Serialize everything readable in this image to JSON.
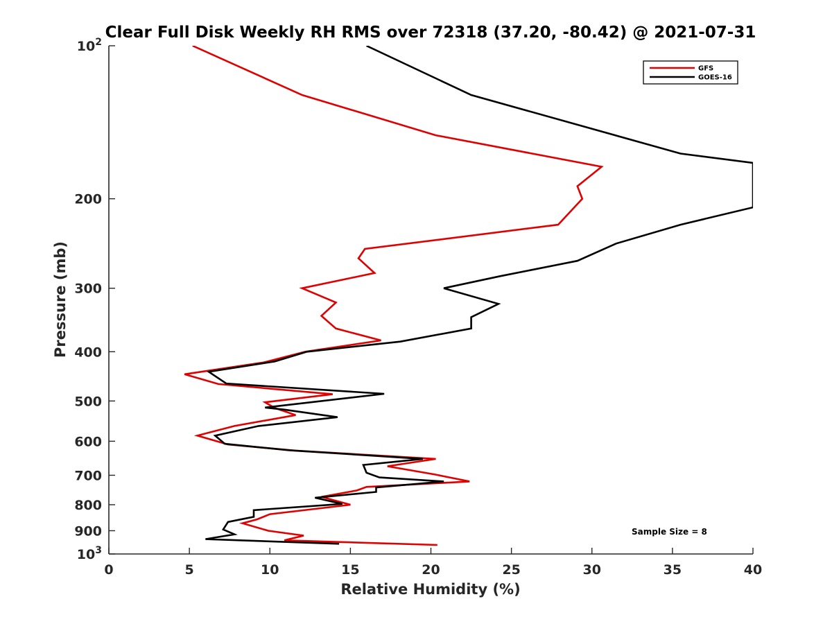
{
  "chart_data": {
    "type": "line",
    "title": "Clear Full Disk Weekly RH RMS over 72318 (37.20, -80.42) @ 2021-07-31",
    "xlabel": "Relative Humidity (%)",
    "ylabel": "Pressure (mb)",
    "xlim": [
      0,
      40
    ],
    "ylim": [
      100,
      1000
    ],
    "yscale": "log",
    "yreversed": true,
    "grid": false,
    "legend_position": "top-right",
    "xticks": [
      0,
      5,
      10,
      15,
      20,
      25,
      30,
      35,
      40
    ],
    "yticks": [
      {
        "value": 100,
        "label": "10",
        "sup": "2"
      },
      {
        "value": 200,
        "label": "200",
        "sup": ""
      },
      {
        "value": 300,
        "label": "300",
        "sup": ""
      },
      {
        "value": 400,
        "label": "400",
        "sup": ""
      },
      {
        "value": 500,
        "label": "500",
        "sup": ""
      },
      {
        "value": 600,
        "label": "600",
        "sup": ""
      },
      {
        "value": 700,
        "label": "700",
        "sup": ""
      },
      {
        "value": 800,
        "label": "800",
        "sup": ""
      },
      {
        "value": 900,
        "label": "900",
        "sup": ""
      },
      {
        "value": 1000,
        "label": "10",
        "sup": "3"
      }
    ],
    "annotation": "Sample Size = 8",
    "series": [
      {
        "name": "GFS",
        "color": "#e00000",
        "points": [
          [
            5.2,
            100
          ],
          [
            12.0,
            125
          ],
          [
            20.3,
            150
          ],
          [
            30.6,
            173
          ],
          [
            29.1,
            189
          ],
          [
            29.4,
            200
          ],
          [
            27.9,
            225
          ],
          [
            15.9,
            251
          ],
          [
            15.5,
            262
          ],
          [
            16.5,
            280
          ],
          [
            12.0,
            300
          ],
          [
            14.1,
            320
          ],
          [
            13.2,
            340
          ],
          [
            14.1,
            360
          ],
          [
            16.9,
            380
          ],
          [
            12.2,
            400
          ],
          [
            9.6,
            420
          ],
          [
            4.7,
            443
          ],
          [
            6.8,
            463
          ],
          [
            13.9,
            485
          ],
          [
            9.7,
            503
          ],
          [
            10.3,
            516
          ],
          [
            11.6,
            533
          ],
          [
            7.8,
            560
          ],
          [
            5.5,
            585
          ],
          [
            7.4,
            609
          ],
          [
            11.6,
            626
          ],
          [
            20.3,
            650
          ],
          [
            17.3,
            672
          ],
          [
            20.2,
            697
          ],
          [
            22.4,
            720
          ],
          [
            16.0,
            738
          ],
          [
            15.4,
            750
          ],
          [
            13.2,
            772
          ],
          [
            15.0,
            800
          ],
          [
            10.0,
            835
          ],
          [
            9.2,
            855
          ],
          [
            8.3,
            870
          ],
          [
            9.9,
            900
          ],
          [
            12.1,
            920
          ],
          [
            10.9,
            940
          ],
          [
            20.4,
            960
          ]
        ]
      },
      {
        "name": "GOES-16",
        "color": "#000000",
        "points": [
          [
            16.0,
            100
          ],
          [
            22.5,
            125
          ],
          [
            35.5,
            163
          ],
          [
            40.0,
            170
          ],
          [
            40.0,
            208
          ],
          [
            35.5,
            225
          ],
          [
            31.5,
            245
          ],
          [
            29.1,
            265
          ],
          [
            24.3,
            284
          ],
          [
            20.8,
            300
          ],
          [
            24.2,
            322
          ],
          [
            22.5,
            342
          ],
          [
            22.5,
            360
          ],
          [
            18.1,
            382
          ],
          [
            12.3,
            400
          ],
          [
            10.3,
            418
          ],
          [
            6.2,
            438
          ],
          [
            7.3,
            462
          ],
          [
            17.1,
            484
          ],
          [
            9.7,
            515
          ],
          [
            10.9,
            520
          ],
          [
            14.2,
            538
          ],
          [
            9.3,
            560
          ],
          [
            6.6,
            585
          ],
          [
            7.2,
            607
          ],
          [
            11.2,
            625
          ],
          [
            19.5,
            650
          ],
          [
            15.8,
            668
          ],
          [
            16.0,
            692
          ],
          [
            16.8,
            707
          ],
          [
            20.8,
            720
          ],
          [
            16.6,
            740
          ],
          [
            16.6,
            755
          ],
          [
            12.8,
            775
          ],
          [
            14.5,
            797
          ],
          [
            9.0,
            820
          ],
          [
            9.0,
            845
          ],
          [
            7.4,
            865
          ],
          [
            7.1,
            895
          ],
          [
            7.8,
            915
          ],
          [
            6.0,
            935
          ],
          [
            14.3,
            955
          ]
        ]
      }
    ]
  }
}
